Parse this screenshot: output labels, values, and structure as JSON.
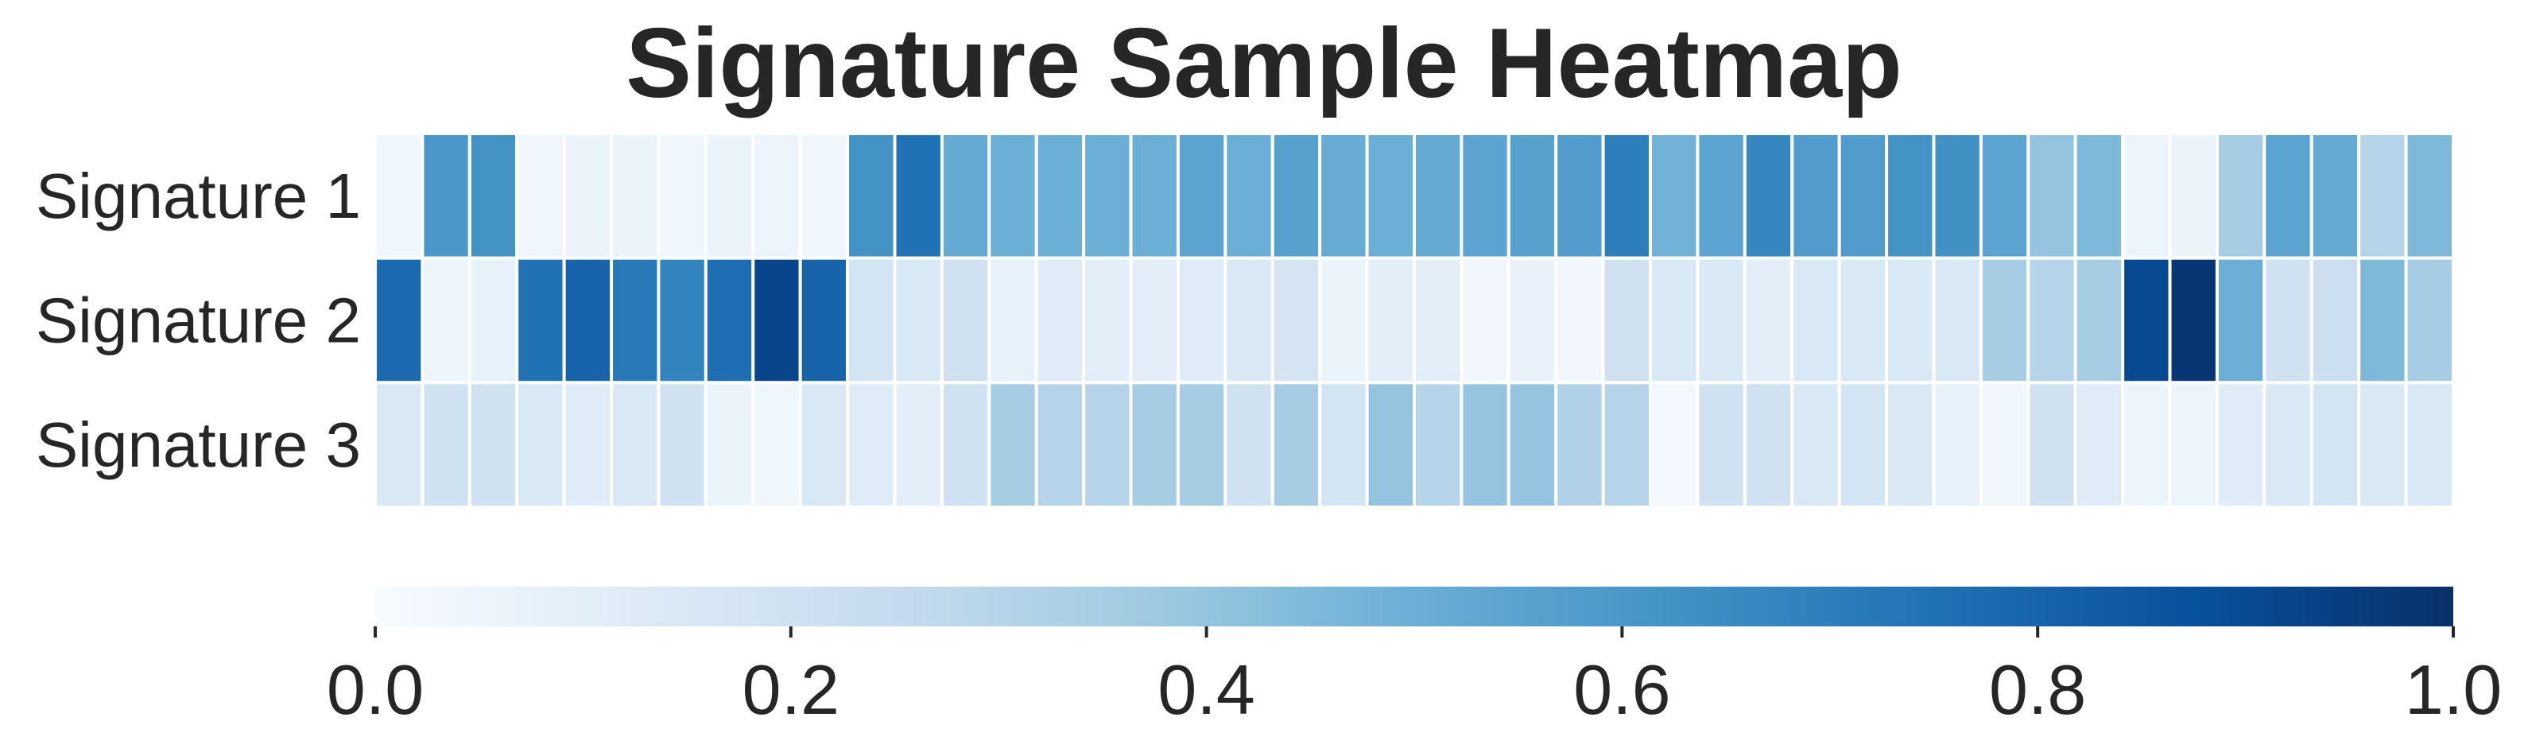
{
  "chart_data": {
    "type": "heatmap",
    "title": "Signature Sample Heatmap",
    "xlabel": "",
    "ylabel": "",
    "rows": [
      "Signature 1",
      "Signature 2",
      "Signature 3"
    ],
    "values": [
      [
        0.04,
        0.6,
        0.62,
        0.04,
        0.06,
        0.06,
        0.04,
        0.06,
        0.05,
        0.04,
        0.62,
        0.75,
        0.52,
        0.5,
        0.5,
        0.5,
        0.5,
        0.55,
        0.5,
        0.56,
        0.51,
        0.5,
        0.52,
        0.55,
        0.56,
        0.58,
        0.7,
        0.48,
        0.55,
        0.67,
        0.58,
        0.58,
        0.62,
        0.63,
        0.55,
        0.4,
        0.45,
        0.05,
        0.06,
        0.35,
        0.55,
        0.52,
        0.3,
        0.45
      ],
      [
        0.78,
        0.05,
        0.08,
        0.75,
        0.8,
        0.72,
        0.68,
        0.76,
        0.92,
        0.8,
        0.18,
        0.15,
        0.2,
        0.08,
        0.12,
        0.1,
        0.1,
        0.12,
        0.15,
        0.17,
        0.06,
        0.1,
        0.1,
        0.03,
        0.07,
        0.03,
        0.2,
        0.15,
        0.15,
        0.1,
        0.15,
        0.15,
        0.15,
        0.15,
        0.35,
        0.3,
        0.35,
        0.9,
        0.98,
        0.5,
        0.2,
        0.22,
        0.45,
        0.35
      ],
      [
        0.15,
        0.2,
        0.2,
        0.15,
        0.12,
        0.15,
        0.2,
        0.06,
        0.04,
        0.15,
        0.12,
        0.1,
        0.2,
        0.35,
        0.3,
        0.3,
        0.35,
        0.35,
        0.2,
        0.35,
        0.18,
        0.4,
        0.3,
        0.4,
        0.4,
        0.32,
        0.3,
        0.02,
        0.2,
        0.2,
        0.15,
        0.18,
        0.15,
        0.08,
        0.04,
        0.2,
        0.12,
        0.05,
        0.05,
        0.12,
        0.15,
        0.18,
        0.15,
        0.15
      ]
    ],
    "colormap": "Blues",
    "colorbar": {
      "orientation": "horizontal",
      "placement": "bottom",
      "range": [
        0.0,
        1.0
      ],
      "ticks": [
        "0.0",
        "0.2",
        "0.4",
        "0.6",
        "0.8",
        "1.0"
      ]
    },
    "grid": false
  }
}
